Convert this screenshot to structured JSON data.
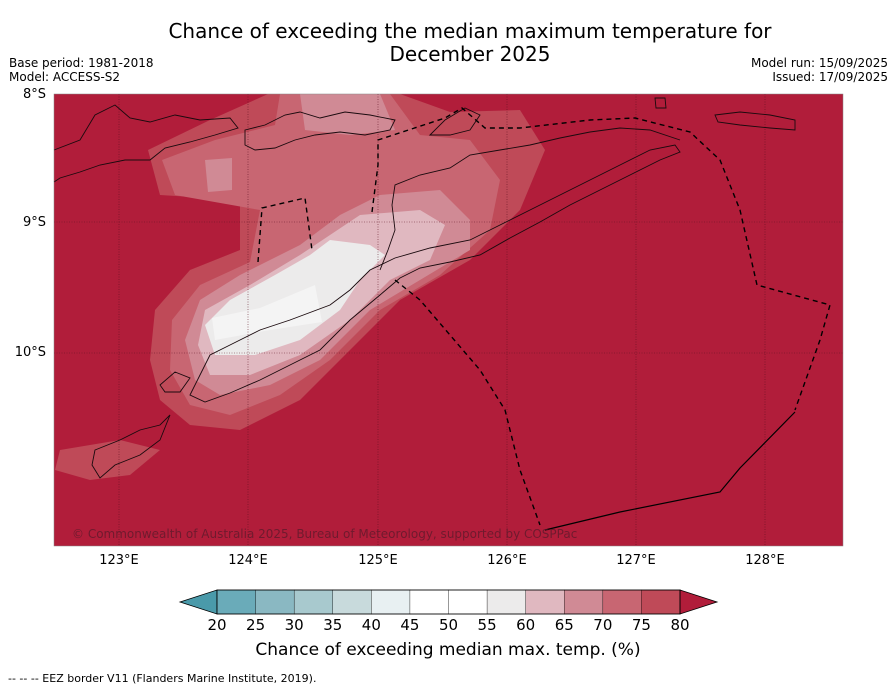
{
  "title_line1": "Chance of exceeding the median maximum temperature for",
  "title_line2": "December 2025",
  "base_period": "Base period: 1981-2018",
  "model": "Model: ACCESS-S2",
  "model_run": "Model run: 15/09/2025",
  "issued": "Issued: 17/09/2025",
  "lat_labels": [
    "8°S",
    "9°S",
    "10°S"
  ],
  "lon_labels": [
    "123°E",
    "124°E",
    "125°E",
    "126°E",
    "127°E",
    "128°E"
  ],
  "copyright": "© Commonwealth of Australia 2025, Bureau of Meteorology, supported by COSPPac",
  "colorbar": {
    "ticks": [
      "20",
      "25",
      "30",
      "35",
      "40",
      "45",
      "50",
      "55",
      "60",
      "65",
      "70",
      "75",
      "80"
    ],
    "label": "Chance of exceeding median max. temp. (%)",
    "colors": [
      "#4a9aaa",
      "#6aabb9",
      "#8ab8c2",
      "#a8c9ce",
      "#c8dadc",
      "#e8f0f2",
      "#ffffff",
      "#ffffff",
      "#ecebeb",
      "#e0b8c0",
      "#d08a95",
      "#c86672",
      "#bf4a58",
      "#b11d3a"
    ]
  },
  "footer": "--  --  -- EEZ border V11 (Flanders Marine Institute, 2019)."
}
